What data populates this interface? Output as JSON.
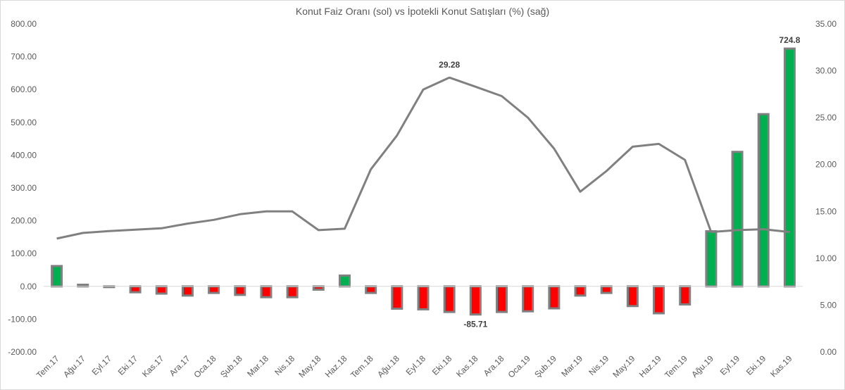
{
  "chart_data": {
    "type": "bar",
    "title": "Konut Faiz Oranı (sol) vs İpotekli Konut Satışları  (%) (sağ)",
    "categories": [
      "Tem.17",
      "Ağu.17",
      "Eyl.17",
      "Eki.17",
      "Kas.17",
      "Ara.17",
      "Oca.18",
      "Şub.18",
      "Mar.18",
      "Nis.18",
      "May.18",
      "Haz.18",
      "Tem.18",
      "Ağu.18",
      "Eyl.18",
      "Eki.18",
      "Kas.18",
      "Ara.18",
      "Oca.19",
      "Şub.19",
      "Mar.19",
      "Nis.19",
      "May.19",
      "Haz.19",
      "Tem.19",
      "Ağu.19",
      "Eyl.19",
      "Eki.19",
      "Kas.19"
    ],
    "y_left": {
      "lim": [
        -200,
        800
      ],
      "ticks": [
        "-200.00",
        "-100.00",
        "0.00",
        "100.00",
        "200.00",
        "300.00",
        "400.00",
        "500.00",
        "600.00",
        "700.00",
        "800.00"
      ]
    },
    "y_right": {
      "lim": [
        0,
        35
      ],
      "ticks": [
        "0.00",
        "5.00",
        "10.00",
        "15.00",
        "20.00",
        "25.00",
        "30.00",
        "35.00"
      ]
    },
    "series": [
      {
        "type": "bar",
        "axis": "left",
        "values": [
          62,
          5,
          -2,
          -18,
          -22,
          -28,
          -20,
          -26,
          -33,
          -33,
          -10,
          33,
          -20,
          -68,
          -70,
          -78,
          -85.71,
          -78,
          -76,
          -67,
          -28,
          -20,
          -60,
          -82,
          -55,
          168,
          410,
          525,
          724.8
        ],
        "color_positive": "#00b050",
        "color_negative": "#ff0000",
        "border_color": "#808080"
      },
      {
        "type": "line",
        "axis": "right",
        "values": [
          12.1,
          12.7,
          12.9,
          13.05,
          13.2,
          13.7,
          14.1,
          14.7,
          15.0,
          15.0,
          13.0,
          13.15,
          19.5,
          23.1,
          28.0,
          29.28,
          28.3,
          27.3,
          25.0,
          21.7,
          17.1,
          19.3,
          21.9,
          22.2,
          20.5,
          12.8,
          13.0,
          13.1,
          12.8
        ],
        "color": "#808080"
      }
    ],
    "data_labels": [
      {
        "series": 1,
        "index": 15,
        "text": "29.28"
      },
      {
        "series": 0,
        "index": 16,
        "text": "-85.71"
      },
      {
        "series": 0,
        "index": 28,
        "text": "724.8"
      }
    ],
    "grid": false,
    "legend": "none"
  }
}
